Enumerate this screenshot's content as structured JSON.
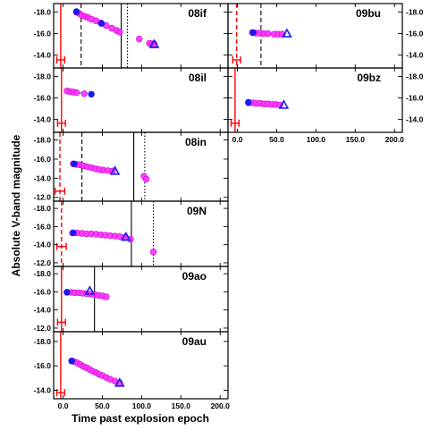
{
  "figure": {
    "xlabel": "Time past explosion epoch",
    "ylabel": "Absolute V-band magnitude",
    "x_ticks": [
      0.0,
      50.0,
      100.0,
      150.0,
      200.0
    ],
    "x_tick_labels": [
      "0.0",
      "50.0",
      "100.0",
      "150.0",
      "200.0"
    ],
    "y_ticks": [
      -18,
      -16,
      -14,
      -12
    ],
    "y_tick_labels": [
      "-18.0",
      "-16.0",
      "-14.0",
      "-12.0"
    ],
    "colors": {
      "data_points": "#ff33ff",
      "data_edge": "#cc00cc",
      "blue_marker": "#1a1aee",
      "fit_line": "#66cccc",
      "red_line": "#ff0000",
      "black_line": "#000000"
    }
  },
  "chart_data": [
    {
      "type": "scatter",
      "name": "08if",
      "xlim": [
        -12,
        210
      ],
      "ylim": [
        -18.8,
        -12.8
      ],
      "points": [
        [
          17,
          -18.0
        ],
        [
          20,
          -17.9
        ],
        [
          24,
          -17.7
        ],
        [
          28,
          -17.6
        ],
        [
          32,
          -17.5
        ],
        [
          36,
          -17.35
        ],
        [
          42,
          -17.2
        ],
        [
          48,
          -17.0
        ],
        [
          55,
          -16.75
        ],
        [
          62,
          -16.5
        ],
        [
          68,
          -16.3
        ],
        [
          72,
          -16.15
        ],
        [
          97,
          -15.5
        ],
        [
          110,
          -15.1
        ],
        [
          113,
          -15.05
        ],
        [
          116,
          -15.05
        ]
      ],
      "blue_points": [
        [
          17,
          -18.05
        ],
        [
          49,
          -16.95
        ],
        [
          116,
          -15.0
        ]
      ],
      "fit_line": [
        [
          24,
          -17.75
        ],
        [
          49,
          -17.0
        ]
      ],
      "red_line_x": -3,
      "red_line_style": "solid",
      "red_error_x": [
        -8,
        2
      ],
      "red_error_y": -13.55,
      "black_lines": [
        {
          "x": 23,
          "style": "dashed"
        },
        {
          "x": 74,
          "style": "solid"
        },
        {
          "x": 82,
          "style": "dotted"
        }
      ]
    },
    {
      "type": "scatter",
      "name": "09bu",
      "xlim": [
        -12,
        210
      ],
      "ylim": [
        -18.8,
        -12.8
      ],
      "points": [
        [
          19,
          -16.1
        ],
        [
          24,
          -16.05
        ],
        [
          29,
          -16.05
        ],
        [
          34,
          -16.0
        ],
        [
          39,
          -16.0
        ],
        [
          47,
          -15.95
        ],
        [
          52,
          -15.95
        ],
        [
          57,
          -15.95
        ]
      ],
      "blue_points": [
        [
          20,
          -16.1
        ],
        [
          63,
          -16.0
        ]
      ],
      "fit_line": [
        [
          20,
          -16.05
        ],
        [
          63,
          -16.0
        ]
      ],
      "red_line_x": -1,
      "red_line_style": "dashed",
      "red_error_x": [
        -6,
        4
      ],
      "red_error_y": -13.55,
      "black_lines": [
        {
          "x": 30,
          "style": "dashed"
        }
      ]
    },
    {
      "type": "scatter",
      "name": "08il",
      "xlim": [
        -12,
        210
      ],
      "ylim": [
        -18.8,
        -12.8
      ],
      "points": [
        [
          5,
          -16.65
        ],
        [
          9,
          -16.6
        ],
        [
          13,
          -16.55
        ],
        [
          17,
          -16.5
        ],
        [
          27,
          -16.4
        ]
      ],
      "blue_points": [
        [
          36,
          -16.35
        ]
      ],
      "fit_line": [
        [
          5,
          -16.55
        ],
        [
          36,
          -16.4
        ]
      ],
      "red_line_x": -2,
      "red_line_style": "solid",
      "red_error_x": [
        -7,
        3
      ],
      "red_error_y": -13.65,
      "black_lines": []
    },
    {
      "type": "scatter",
      "name": "09bz",
      "xlim": [
        -12,
        210
      ],
      "ylim": [
        -18.8,
        -12.8
      ],
      "points": [
        [
          14,
          -15.55
        ],
        [
          19,
          -15.55
        ],
        [
          24,
          -15.5
        ],
        [
          29,
          -15.5
        ],
        [
          34,
          -15.45
        ],
        [
          39,
          -15.45
        ],
        [
          44,
          -15.4
        ],
        [
          49,
          -15.4
        ],
        [
          54,
          -15.35
        ]
      ],
      "blue_points": [
        [
          14,
          -15.6
        ],
        [
          59,
          -15.35
        ]
      ],
      "fit_line": [
        [
          14,
          -15.55
        ],
        [
          59,
          -15.35
        ]
      ],
      "red_line_x": -3,
      "red_line_style": "solid",
      "red_error_x": [
        -8,
        2
      ],
      "red_error_y": -13.65,
      "black_lines": []
    },
    {
      "type": "scatter",
      "name": "08in",
      "xlim": [
        -12,
        210
      ],
      "ylim": [
        -18.8,
        -11.6
      ],
      "points": [
        [
          13,
          -15.5
        ],
        [
          17,
          -15.45
        ],
        [
          21,
          -15.4
        ],
        [
          26,
          -15.3
        ],
        [
          31,
          -15.2
        ],
        [
          36,
          -15.1
        ],
        [
          41,
          -15.0
        ],
        [
          46,
          -14.9
        ],
        [
          51,
          -14.85
        ],
        [
          57,
          -14.8
        ],
        [
          63,
          -14.75
        ],
        [
          103,
          -14.2
        ],
        [
          106,
          -13.9
        ]
      ],
      "blue_points": [
        [
          14,
          -15.5
        ],
        [
          66,
          -14.75
        ]
      ],
      "fit_line": [
        [
          14,
          -15.5
        ],
        [
          66,
          -14.75
        ]
      ],
      "red_line_x": -4,
      "red_line_style": "dashed",
      "red_error_x": [
        -10,
        2
      ],
      "red_error_y": -12.65,
      "black_lines": [
        {
          "x": 24,
          "style": "dashed"
        },
        {
          "x": 90,
          "style": "solid"
        },
        {
          "x": 104,
          "style": "dotted"
        }
      ]
    },
    {
      "type": "scatter",
      "name": "09N",
      "xlim": [
        -12,
        210
      ],
      "ylim": [
        -18.8,
        -11.6
      ],
      "points": [
        [
          12,
          -15.3
        ],
        [
          18,
          -15.3
        ],
        [
          24,
          -15.25
        ],
        [
          30,
          -15.2
        ],
        [
          36,
          -15.2
        ],
        [
          42,
          -15.15
        ],
        [
          48,
          -15.1
        ],
        [
          54,
          -15.05
        ],
        [
          60,
          -15.0
        ],
        [
          66,
          -14.95
        ],
        [
          72,
          -14.9
        ],
        [
          78,
          -14.8
        ],
        [
          86,
          -14.6
        ],
        [
          115,
          -13.2
        ]
      ],
      "blue_points": [
        [
          13,
          -15.3
        ],
        [
          80,
          -14.85
        ]
      ],
      "fit_line": [
        [
          13,
          -15.3
        ],
        [
          80,
          -14.85
        ]
      ],
      "red_line_x": -2,
      "red_line_style": "dashed",
      "red_error_x": [
        -8,
        4
      ],
      "red_error_y": -13.8,
      "black_lines": [
        {
          "x": 87,
          "style": "solid"
        },
        {
          "x": 115,
          "style": "dotted"
        }
      ]
    },
    {
      "type": "scatter",
      "name": "09ao",
      "xlim": [
        -12,
        210
      ],
      "ylim": [
        -18.8,
        -11.6
      ],
      "points": [
        [
          5,
          -15.95
        ],
        [
          10,
          -15.95
        ],
        [
          15,
          -15.9
        ],
        [
          20,
          -15.9
        ],
        [
          25,
          -15.85
        ],
        [
          30,
          -15.8
        ],
        [
          35,
          -15.75
        ],
        [
          40,
          -15.7
        ],
        [
          45,
          -15.6
        ],
        [
          50,
          -15.55
        ],
        [
          55,
          -15.45
        ]
      ],
      "blue_points": [
        [
          5,
          -15.95
        ],
        [
          34,
          -16.1
        ]
      ],
      "fit_line": [
        [
          5,
          -15.95
        ],
        [
          50,
          -15.6
        ]
      ],
      "red_line_x": -2,
      "red_line_style": "solid",
      "red_error_x": [
        -7,
        3
      ],
      "red_error_y": -12.65,
      "black_lines": [
        {
          "x": 40,
          "style": "solid"
        }
      ]
    },
    {
      "type": "scatter",
      "name": "09au",
      "xlim": [
        -12,
        210
      ],
      "ylim": [
        -18.8,
        -13.3
      ],
      "points": [
        [
          11,
          -16.4
        ],
        [
          14,
          -16.35
        ],
        [
          18,
          -16.25
        ],
        [
          22,
          -16.1
        ],
        [
          26,
          -15.95
        ],
        [
          30,
          -15.85
        ],
        [
          34,
          -15.7
        ],
        [
          38,
          -15.55
        ],
        [
          42,
          -15.45
        ],
        [
          46,
          -15.3
        ],
        [
          50,
          -15.2
        ],
        [
          55,
          -15.05
        ],
        [
          60,
          -14.9
        ],
        [
          66,
          -14.75
        ],
        [
          72,
          -14.6
        ]
      ],
      "blue_points": [
        [
          11,
          -16.4
        ],
        [
          72,
          -14.6
        ]
      ],
      "fit_line": [
        [
          11,
          -16.4
        ],
        [
          72,
          -14.6
        ]
      ],
      "red_line_x": -3,
      "red_line_style": "solid",
      "red_error_x": [
        -8,
        2
      ],
      "red_error_y": -13.8,
      "black_lines": []
    }
  ]
}
